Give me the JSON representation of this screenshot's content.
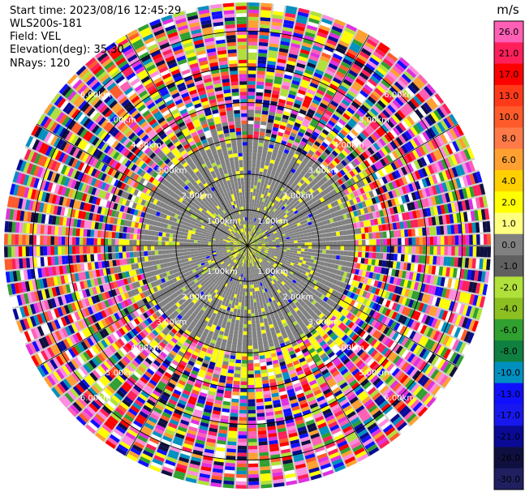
{
  "info": {
    "start_time": "Start time: 2023/08/16 12:45:29",
    "instrument": "WLS200s-181",
    "field": "Field: VEL",
    "elevation": "Elevation(deg): 35.30",
    "nrays": "NRays: 120"
  },
  "colorbar": {
    "unit": "m/s",
    "boundaries": [
      26.0,
      21.0,
      17.0,
      13.0,
      10.0,
      8.0,
      6.0,
      4.0,
      2.0,
      1.0,
      0.0,
      -1.0,
      -2.0,
      -4.0,
      -6.0,
      -8.0,
      -10.0,
      -13.0,
      -17.0,
      -21.0,
      -26.0,
      -30.0
    ],
    "labels": [
      "26.0",
      "21.0",
      "17.0",
      "13.0",
      "10.0",
      "8.0",
      "6.0",
      "4.0",
      "2.0",
      "1.0",
      "0.0",
      "-1.0",
      "-2.0",
      "-4.0",
      "-6.0",
      "-8.0",
      "-10.0",
      "-13.0",
      "-17.0",
      "-21.0",
      "-26.0",
      "-30.0"
    ],
    "colors": [
      "#ff5fb4",
      "#ff1f5a",
      "#ff0000",
      "#ff3a1a",
      "#ff5a2a",
      "#ff7a48",
      "#ffa030",
      "#ffd000",
      "#ffff00",
      "#ffff80",
      "#808080",
      "#606060",
      "#b0e03a",
      "#8cc020",
      "#30a030",
      "#108040",
      "#0090c0",
      "#1010ff",
      "#1818ee",
      "#0a0a96",
      "#101040",
      "#202060"
    ]
  },
  "chart_data": {
    "type": "ppi",
    "field": "VEL",
    "elevation_deg": 35.3,
    "nrays": 120,
    "range_rings_km": [
      1.0,
      2.0,
      3.0,
      4.0,
      5.0,
      6.0
    ],
    "ring_labels": [
      "1.00km",
      "2.00km",
      "3.00km",
      "4.00km",
      "5.00km",
      "6.00km"
    ],
    "max_range_km": 6.8,
    "gate_km": 0.1,
    "clean_range_km": 3.0,
    "dominant_velocity_ms": 0.0,
    "palette_colors": [
      "#ff5fb4",
      "#ff1f5a",
      "#ff0000",
      "#ff5a2a",
      "#ffa030",
      "#ffff00",
      "#b0e03a",
      "#30a030",
      "#0090c0",
      "#1010ff",
      "#0a0a96",
      "#101040",
      "#e030e0",
      "#ff8ce0",
      "#ffffff"
    ]
  }
}
